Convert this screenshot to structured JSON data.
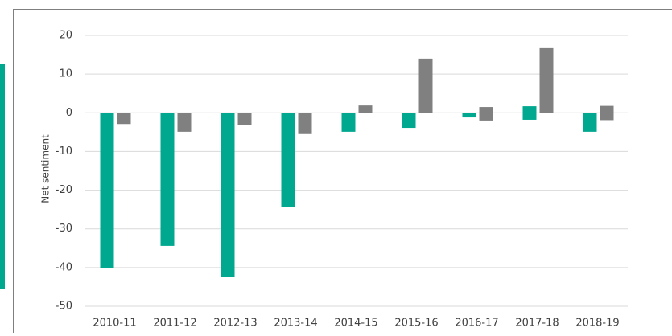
{
  "chart_data": {
    "type": "floating-bar",
    "y_label": "Net sentiment",
    "categories": [
      "2010-11",
      "2011-12",
      "2012-13",
      "2013-14",
      "2014-15",
      "2015-16",
      "2016-17",
      "2017-18",
      "2018-19"
    ],
    "series": [
      {
        "color": "#00a88f",
        "values": [
          [
            -40.1,
            0
          ],
          [
            -34.4,
            0
          ],
          [
            -42.5,
            0
          ],
          [
            -24.3,
            0
          ],
          [
            -4.9,
            0
          ],
          [
            -3.9,
            0
          ],
          [
            -1.2,
            0
          ],
          [
            -1.8,
            1.7
          ],
          [
            -4.9,
            0
          ]
        ]
      },
      {
        "color": "#808080",
        "values": [
          [
            -2.9,
            0
          ],
          [
            -4.9,
            0
          ],
          [
            -3.2,
            0
          ],
          [
            -5.5,
            0
          ],
          [
            0,
            1.9
          ],
          [
            0,
            14
          ],
          [
            -2,
            1.5
          ],
          [
            0,
            16.7
          ],
          [
            -1.9,
            1.8
          ]
        ]
      }
    ],
    "ylim": [
      -50,
      20
    ],
    "yticks": [
      -50,
      -40,
      -30,
      -20,
      -10,
      0,
      10,
      20
    ],
    "grid": true
  }
}
